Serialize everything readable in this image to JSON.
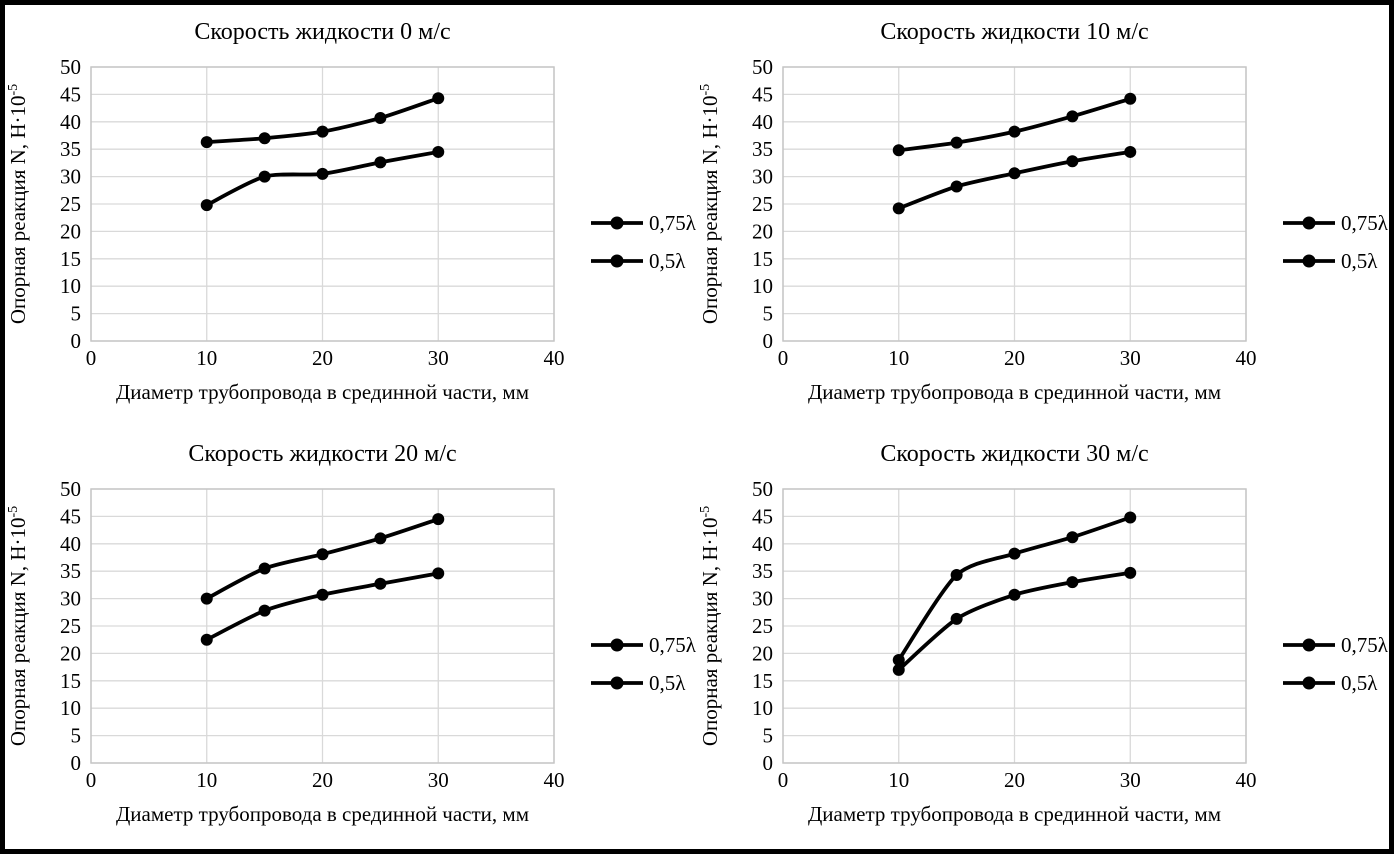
{
  "page": {
    "background": "#ffffff",
    "frame_border_color": "#000000",
    "text_color": "#000000",
    "gridline_color": "#d9d9d9",
    "plot_border_color": "#c6c6c6",
    "series_color": "#000000"
  },
  "chart_data": [
    {
      "type": "line",
      "velocity_mps": 0,
      "title": "Скорость жидкости 0 м/с",
      "xlabel": "Диаметр трубопровода в срединной части, мм",
      "ylabel": "Опорная реакция N, Н·10⁻⁵",
      "ylabel_base": "Опорная реакция N, Н·10",
      "ylabel_sup": "-5",
      "x": [
        10,
        15,
        20,
        25,
        30
      ],
      "series": [
        {
          "name": "0,75λ",
          "values": [
            36.3,
            37.0,
            38.2,
            40.7,
            44.3
          ]
        },
        {
          "name": "0,5λ",
          "values": [
            24.8,
            30.0,
            30.5,
            32.6,
            34.5
          ]
        }
      ],
      "xlim": [
        0,
        40
      ],
      "ylim": [
        0,
        50
      ],
      "xticks": [
        0,
        10,
        20,
        30,
        40
      ],
      "yticks": [
        0,
        5,
        10,
        15,
        20,
        25,
        30,
        35,
        40,
        45,
        50
      ],
      "grid": true,
      "legend_position": "right"
    },
    {
      "type": "line",
      "velocity_mps": 10,
      "title": "Скорость жидкости 10 м/с",
      "xlabel": "Диаметр трубопровода в срединной части, мм",
      "ylabel": "Опорная реакция N, Н·10⁻⁵",
      "ylabel_base": "Опорная реакция N, Н·10",
      "ylabel_sup": "-5",
      "x": [
        10,
        15,
        20,
        25,
        30
      ],
      "series": [
        {
          "name": "0,75λ",
          "values": [
            34.8,
            36.2,
            38.2,
            41.0,
            44.2
          ]
        },
        {
          "name": "0,5λ",
          "values": [
            24.2,
            28.2,
            30.6,
            32.8,
            34.5
          ]
        }
      ],
      "xlim": [
        0,
        40
      ],
      "ylim": [
        0,
        50
      ],
      "xticks": [
        0,
        10,
        20,
        30,
        40
      ],
      "yticks": [
        0,
        5,
        10,
        15,
        20,
        25,
        30,
        35,
        40,
        45,
        50
      ],
      "grid": true,
      "legend_position": "right"
    },
    {
      "type": "line",
      "velocity_mps": 20,
      "title": "Скорость жидкости 20 м/с",
      "xlabel": "Диаметр трубопровода в срединной части, мм",
      "ylabel": "Опорная реакция N, Н·10⁻⁵",
      "ylabel_base": "Опорная реакция N, Н·10",
      "ylabel_sup": "-5",
      "x": [
        10,
        15,
        20,
        25,
        30
      ],
      "series": [
        {
          "name": "0,75λ",
          "values": [
            30.0,
            35.5,
            38.1,
            41.0,
            44.5
          ]
        },
        {
          "name": "0,5λ",
          "values": [
            22.5,
            27.8,
            30.7,
            32.7,
            34.6
          ]
        }
      ],
      "xlim": [
        0,
        40
      ],
      "ylim": [
        0,
        50
      ],
      "xticks": [
        0,
        10,
        20,
        30,
        40
      ],
      "yticks": [
        0,
        5,
        10,
        15,
        20,
        25,
        30,
        35,
        40,
        45,
        50
      ],
      "grid": true,
      "legend_position": "right"
    },
    {
      "type": "line",
      "velocity_mps": 30,
      "title": "Скорость жидкости 30 м/с",
      "xlabel": "Диаметр трубопровода в срединной части, мм",
      "ylabel": "Опорная реакция N, Н·10⁻⁵",
      "ylabel_base": "Опорная реакция N, Н·10",
      "ylabel_sup": "-5",
      "x": [
        10,
        15,
        20,
        25,
        30
      ],
      "series": [
        {
          "name": "0,75λ",
          "values": [
            18.8,
            34.3,
            38.2,
            41.2,
            44.8
          ]
        },
        {
          "name": "0,5λ",
          "values": [
            17.0,
            26.3,
            30.7,
            33.0,
            34.7
          ]
        }
      ],
      "xlim": [
        0,
        40
      ],
      "ylim": [
        0,
        50
      ],
      "xticks": [
        0,
        10,
        20,
        30,
        40
      ],
      "yticks": [
        0,
        5,
        10,
        15,
        20,
        25,
        30,
        35,
        40,
        45,
        50
      ],
      "grid": true,
      "legend_position": "right"
    }
  ]
}
